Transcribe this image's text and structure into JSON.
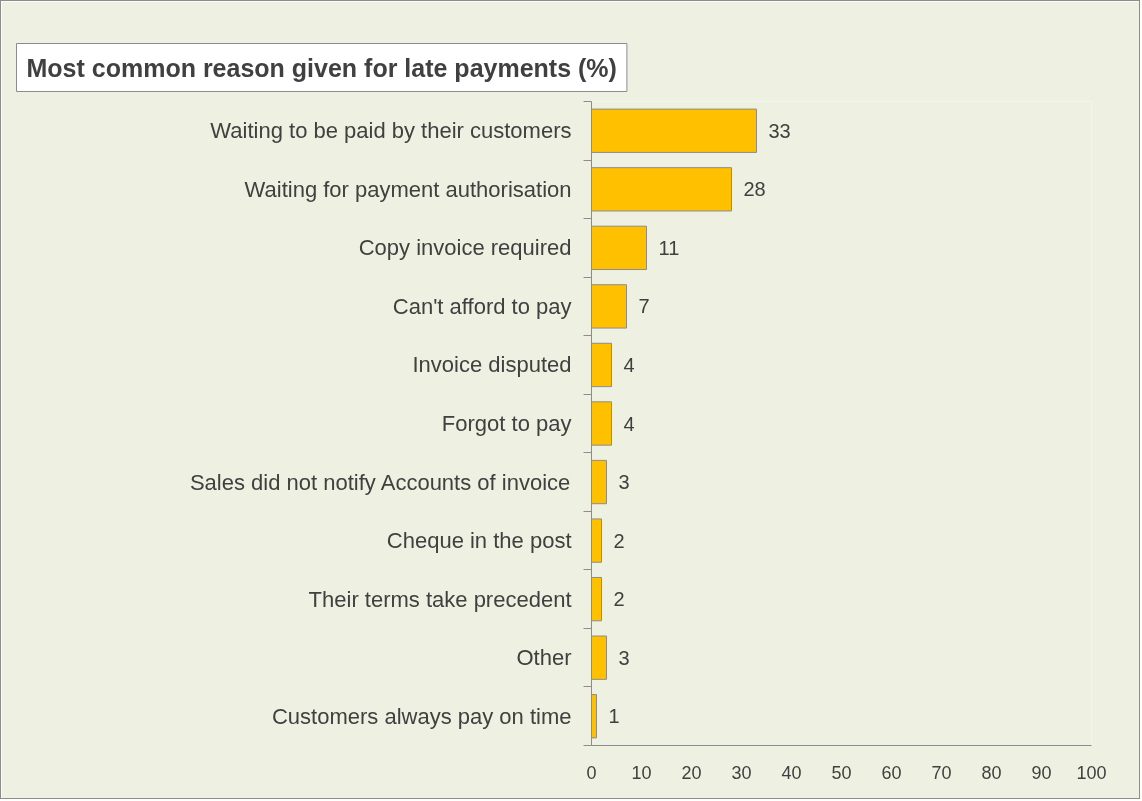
{
  "chart_data": {
    "type": "bar",
    "orientation": "horizontal",
    "title": "Most common reason given for late payments (%)",
    "categories": [
      "Waiting to be paid by their customers",
      "Waiting for payment authorisation",
      "Copy invoice required",
      "Can't afford to pay",
      "Invoice disputed",
      "Forgot to pay",
      "Sales did not notify Accounts of invoice",
      "Cheque in the post",
      "Their terms take precedent",
      "Other",
      "Customers always pay on time"
    ],
    "values": [
      33,
      28,
      11,
      7,
      4,
      4,
      3,
      2,
      2,
      3,
      1
    ],
    "color": "#ffc000",
    "xlim": [
      0,
      100
    ],
    "xticks": [
      0,
      10,
      20,
      30,
      40,
      50,
      60,
      70,
      80,
      90,
      100
    ],
    "data_labels": true,
    "grid": false
  }
}
